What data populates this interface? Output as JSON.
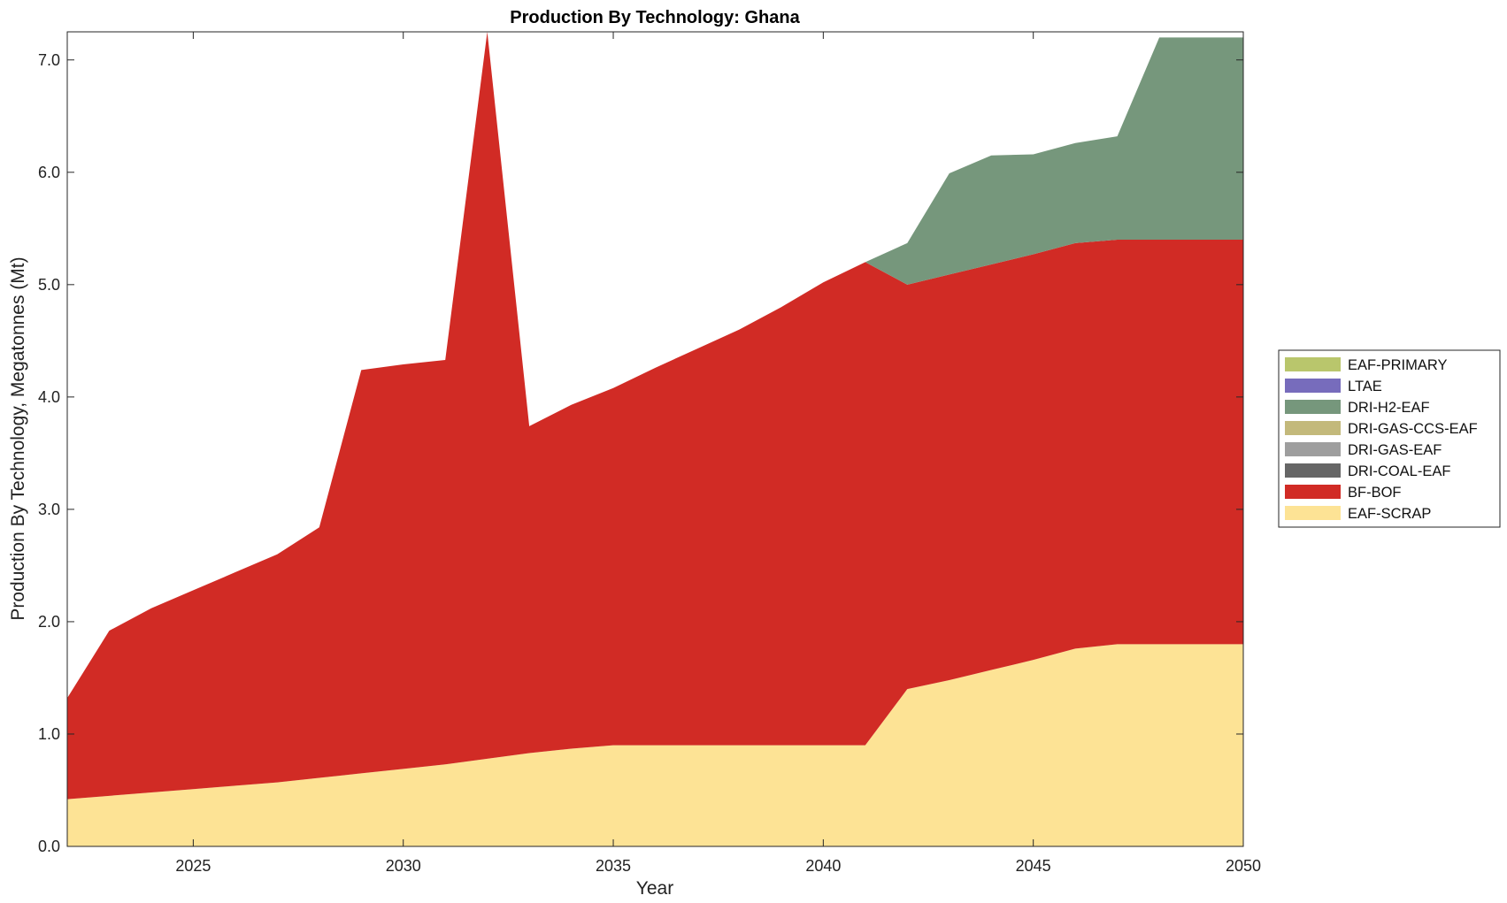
{
  "chart_data": {
    "type": "area",
    "stacked": true,
    "title": "Production By Technology: Ghana",
    "xlabel": "Year",
    "ylabel": "Production By Technology, Megatonnes (Mt)",
    "xlim": [
      2022,
      2050
    ],
    "ylim": [
      0,
      7.25
    ],
    "xticks": [
      2025,
      2030,
      2035,
      2040,
      2045,
      2050
    ],
    "yticks": [
      0,
      1,
      2,
      3,
      4,
      5,
      6,
      7
    ],
    "ytick_labels": [
      "0.0",
      "1.0",
      "2.0",
      "3.0",
      "4.0",
      "5.0",
      "6.0",
      "7.0"
    ],
    "grid": false,
    "legend_position": "right",
    "x": [
      2022,
      2023,
      2024,
      2025,
      2026,
      2027,
      2028,
      2029,
      2030,
      2031,
      2032,
      2033,
      2034,
      2035,
      2036,
      2037,
      2038,
      2039,
      2040,
      2041,
      2042,
      2043,
      2044,
      2045,
      2046,
      2047,
      2048,
      2049,
      2050
    ],
    "series": [
      {
        "name": "EAF-SCRAP",
        "color": "#FDE395",
        "values": [
          0.42,
          0.45,
          0.48,
          0.51,
          0.54,
          0.57,
          0.61,
          0.65,
          0.69,
          0.73,
          0.78,
          0.83,
          0.87,
          0.9,
          0.9,
          0.9,
          0.9,
          0.9,
          0.9,
          0.9,
          1.4,
          1.48,
          1.57,
          1.66,
          1.76,
          1.8,
          1.8,
          1.8,
          1.8
        ]
      },
      {
        "name": "BF-BOF",
        "color": "#D12B25",
        "values": [
          0.9,
          1.47,
          1.64,
          1.77,
          1.9,
          2.03,
          2.23,
          3.59,
          3.6,
          3.6,
          6.47,
          2.91,
          3.06,
          3.18,
          3.36,
          3.53,
          3.7,
          3.9,
          4.12,
          4.3,
          3.6,
          3.61,
          3.61,
          3.61,
          3.61,
          3.6,
          3.6,
          3.6,
          3.6
        ]
      },
      {
        "name": "DRI-COAL-EAF",
        "color": "#666666",
        "values": [
          0,
          0,
          0,
          0,
          0,
          0,
          0,
          0,
          0,
          0,
          0,
          0,
          0,
          0,
          0,
          0,
          0,
          0,
          0,
          0,
          0,
          0,
          0,
          0,
          0,
          0,
          0,
          0,
          0
        ]
      },
      {
        "name": "DRI-GAS-EAF",
        "color": "#9E9E9E",
        "values": [
          0,
          0,
          0,
          0,
          0,
          0,
          0,
          0,
          0,
          0,
          0,
          0,
          0,
          0,
          0,
          0,
          0,
          0,
          0,
          0,
          0,
          0,
          0,
          0,
          0,
          0,
          0,
          0,
          0
        ]
      },
      {
        "name": "DRI-GAS-CCS-EAF",
        "color": "#C3B97B",
        "values": [
          0,
          0,
          0,
          0,
          0,
          0,
          0,
          0,
          0,
          0,
          0,
          0,
          0,
          0,
          0,
          0,
          0,
          0,
          0,
          0,
          0,
          0,
          0,
          0,
          0,
          0,
          0,
          0,
          0
        ]
      },
      {
        "name": "DRI-H2-EAF",
        "color": "#76977C",
        "values": [
          0,
          0,
          0,
          0,
          0,
          0,
          0,
          0,
          0,
          0,
          0,
          0,
          0,
          0,
          0,
          0,
          0,
          0,
          0,
          0,
          0.37,
          0.9,
          0.97,
          0.89,
          0.89,
          0.92,
          1.8,
          1.8,
          1.8
        ]
      },
      {
        "name": "LTAE",
        "color": "#776CBC",
        "values": [
          0,
          0,
          0,
          0,
          0,
          0,
          0,
          0,
          0,
          0,
          0,
          0,
          0,
          0,
          0,
          0,
          0,
          0,
          0,
          0,
          0,
          0,
          0,
          0,
          0,
          0,
          0,
          0,
          0
        ]
      },
      {
        "name": "EAF-PRIMARY",
        "color": "#B9C66C",
        "values": [
          0,
          0,
          0,
          0,
          0,
          0,
          0,
          0,
          0,
          0,
          0,
          0,
          0,
          0,
          0,
          0,
          0,
          0,
          0,
          0,
          0,
          0,
          0,
          0,
          0,
          0,
          0,
          0,
          0
        ]
      }
    ],
    "legend_order": [
      "EAF-PRIMARY",
      "LTAE",
      "DRI-H2-EAF",
      "DRI-GAS-CCS-EAF",
      "DRI-GAS-EAF",
      "DRI-COAL-EAF",
      "BF-BOF",
      "EAF-SCRAP"
    ]
  }
}
